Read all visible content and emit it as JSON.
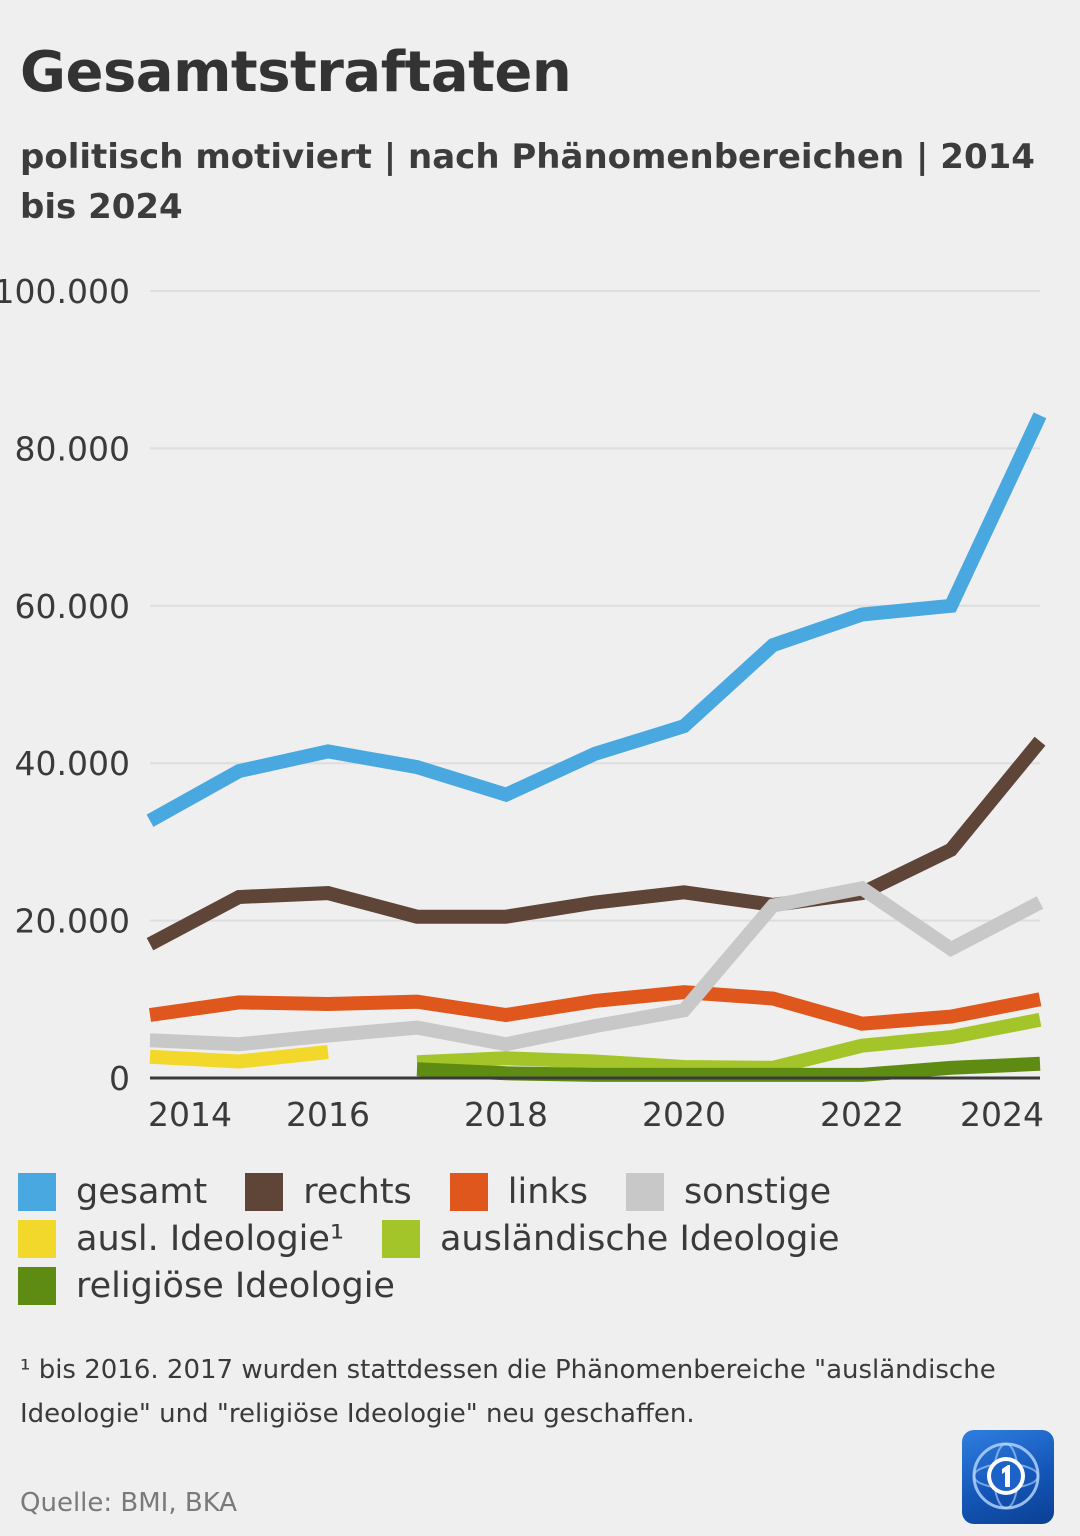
{
  "title": "Gesamtstraftaten",
  "subtitle": "politisch motiviert | nach Phänomenbereichen |  2014 bis 2024",
  "chart_data": {
    "type": "line",
    "title": "Gesamtstraftaten",
    "subtitle": "politisch motiviert | nach Phänomenbereichen |  2014 bis 2024",
    "xlabel": "",
    "ylabel": "",
    "x_ticks": [
      "2014",
      "2016",
      "2018",
      "2020",
      "2022",
      "2024"
    ],
    "y_ticks": [
      "0",
      "20.000",
      "40.000",
      "60.000",
      "80.000",
      "100.000"
    ],
    "xlim": [
      2014,
      2024
    ],
    "ylim": [
      0,
      100000
    ],
    "grid": true,
    "legend_position": "bottom",
    "series": [
      {
        "name": "gesamt",
        "color": "#4aa8e0",
        "x": [
          2014,
          2015,
          2016,
          2017,
          2018,
          2019,
          2020,
          2021,
          2022,
          2023,
          2024
        ],
        "values": [
          32700,
          39000,
          41500,
          39500,
          36000,
          41200,
          44700,
          55000,
          58900,
          60000,
          84200
        ]
      },
      {
        "name": "rechts",
        "color": "#5e4537",
        "x": [
          2014,
          2015,
          2016,
          2017,
          2018,
          2019,
          2020,
          2021,
          2022,
          2023,
          2024
        ],
        "values": [
          17000,
          23000,
          23500,
          20500,
          20500,
          22300,
          23600,
          22000,
          23500,
          29000,
          42800
        ]
      },
      {
        "name": "links",
        "color": "#e0571d",
        "x": [
          2014,
          2015,
          2016,
          2017,
          2018,
          2019,
          2020,
          2021,
          2022,
          2023,
          2024
        ],
        "values": [
          8000,
          9600,
          9400,
          9700,
          8000,
          9800,
          10900,
          10100,
          6900,
          7800,
          10000
        ]
      },
      {
        "name": "sonstige",
        "color": "#c8c8c8",
        "x": [
          2014,
          2015,
          2016,
          2017,
          2018,
          2019,
          2020,
          2021,
          2022,
          2023,
          2024
        ],
        "values": [
          4800,
          4300,
          5400,
          6400,
          4300,
          6600,
          8600,
          21900,
          24100,
          16400,
          22300
        ]
      },
      {
        "name": "ausl. Ideologie¹",
        "color": "#f2d82a",
        "x": [
          2014,
          2015,
          2016
        ],
        "values": [
          2700,
          2100,
          3300
        ]
      },
      {
        "name": "ausländische Ideologie",
        "color": "#a3c52a",
        "x": [
          2017,
          2018,
          2019,
          2020,
          2021,
          2022,
          2023,
          2024
        ],
        "values": [
          2000,
          2500,
          2100,
          1400,
          1300,
          4100,
          5200,
          7400
        ]
      },
      {
        "name": "religiöse Ideologie",
        "color": "#5e8b12",
        "x": [
          2017,
          2018,
          2019,
          2020,
          2021,
          2022,
          2023,
          2024
        ],
        "values": [
          1100,
          600,
          400,
          400,
          400,
          400,
          1300,
          1800
        ]
      }
    ]
  },
  "legend_rows": [
    [
      {
        "label": "gesamt",
        "color": "#4aa8e0"
      },
      {
        "label": "rechts",
        "color": "#5e4537"
      },
      {
        "label": "links",
        "color": "#e0571d"
      },
      {
        "label": "sonstige",
        "color": "#c8c8c8"
      }
    ],
    [
      {
        "label": "ausl. Ideologie¹",
        "color": "#f2d82a"
      },
      {
        "label": "ausländische Ideologie",
        "color": "#a3c52a"
      }
    ],
    [
      {
        "label": "religiöse Ideologie",
        "color": "#5e8b12"
      }
    ]
  ],
  "footnote": "¹ bis 2016. 2017 wurden stattdessen die Phänomenbereiche \"ausländische Ideologie\" und \"religiöse Ideologie\" neu geschaffen.",
  "source": "Quelle:  BMI, BKA",
  "logo_icon": "tagesschau-logo-icon",
  "colors": {
    "background": "#efefef",
    "grid": "#dedede",
    "axis": "#3a3a3a"
  }
}
